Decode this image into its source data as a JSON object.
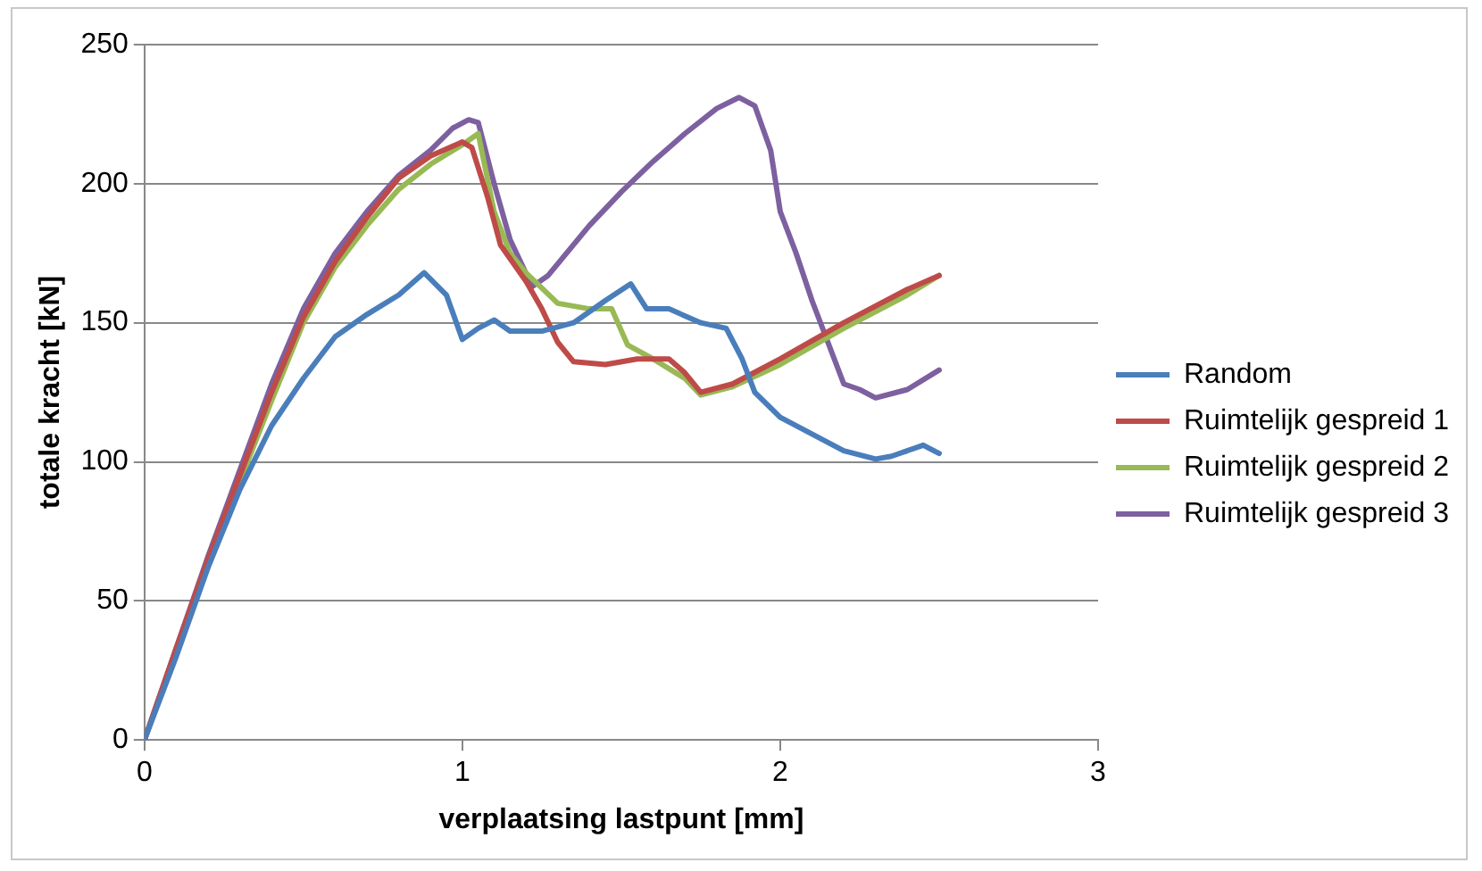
{
  "chart_data": {
    "type": "line",
    "xlabel": "verplaatsing lastpunt [mm]",
    "ylabel": "totale kracht [kN]",
    "xlim": [
      0,
      3
    ],
    "xticks": [
      0,
      1,
      2,
      3
    ],
    "ylim": [
      0,
      250
    ],
    "yticks": [
      0,
      50,
      100,
      150,
      200,
      250
    ],
    "grid": "y",
    "legend": "right",
    "marker": "none",
    "line_style": "solid",
    "series": [
      {
        "name": "Random",
        "color": "#4a7ebb",
        "x": [
          0,
          0.1,
          0.2,
          0.3,
          0.4,
          0.5,
          0.6,
          0.7,
          0.8,
          0.88,
          0.95,
          1.0,
          1.05,
          1.1,
          1.15,
          1.25,
          1.35,
          1.45,
          1.53,
          1.58,
          1.65,
          1.75,
          1.83,
          1.88,
          1.92,
          2.0,
          2.1,
          2.2,
          2.3,
          2.35,
          2.45,
          2.5
        ],
        "values": [
          0,
          30,
          62,
          90,
          113,
          130,
          145,
          153,
          160,
          168,
          160,
          144,
          148,
          151,
          147,
          147,
          150,
          158,
          164,
          155,
          155,
          150,
          148,
          137,
          125,
          116,
          110,
          104,
          101,
          102,
          106,
          103
        ]
      },
      {
        "name": "Ruimtelijk gespreid 1",
        "color": "#be4b48",
        "x": [
          0,
          0.1,
          0.2,
          0.3,
          0.4,
          0.5,
          0.6,
          0.7,
          0.8,
          0.9,
          1.0,
          1.03,
          1.08,
          1.12,
          1.2,
          1.25,
          1.3,
          1.35,
          1.45,
          1.55,
          1.65,
          1.7,
          1.75,
          1.85,
          2.0,
          2.2,
          2.4,
          2.5
        ],
        "values": [
          0,
          33,
          65,
          95,
          125,
          152,
          172,
          188,
          202,
          210,
          215,
          213,
          195,
          178,
          165,
          155,
          143,
          136,
          135,
          137,
          137,
          132,
          125,
          128,
          137,
          150,
          162,
          167
        ]
      },
      {
        "name": "Ruimtelijk gespreid 2",
        "color": "#98b954",
        "x": [
          0.2,
          0.3,
          0.4,
          0.5,
          0.6,
          0.7,
          0.8,
          0.9,
          1.0,
          1.05,
          1.1,
          1.15,
          1.2,
          1.3,
          1.4,
          1.47,
          1.52,
          1.6,
          1.7,
          1.75,
          1.85,
          2.0,
          2.2,
          2.4,
          2.5
        ],
        "values": [
          64,
          93,
          122,
          150,
          170,
          185,
          198,
          207,
          214,
          218,
          190,
          175,
          168,
          157,
          155,
          155,
          142,
          137,
          130,
          124,
          127,
          135,
          148,
          160,
          167
        ]
      },
      {
        "name": "Ruimtelijk gespreid 3",
        "color": "#7d60a0",
        "x": [
          0,
          0.1,
          0.2,
          0.3,
          0.4,
          0.5,
          0.6,
          0.7,
          0.8,
          0.9,
          0.97,
          1.02,
          1.05,
          1.1,
          1.15,
          1.22,
          1.27,
          1.4,
          1.5,
          1.6,
          1.7,
          1.8,
          1.87,
          1.92,
          1.97,
          2.0,
          2.05,
          2.1,
          2.15,
          2.2,
          2.25,
          2.3,
          2.4,
          2.5
        ],
        "values": [
          0,
          33,
          66,
          97,
          128,
          155,
          175,
          190,
          203,
          212,
          220,
          223,
          222,
          200,
          180,
          163,
          167,
          185,
          197,
          208,
          218,
          227,
          231,
          228,
          212,
          190,
          175,
          158,
          143,
          128,
          126,
          123,
          126,
          133
        ]
      }
    ]
  }
}
